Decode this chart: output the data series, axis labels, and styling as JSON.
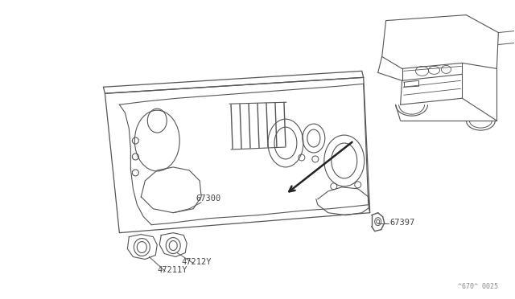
{
  "background_color": "#ffffff",
  "line_color": "#555555",
  "text_color": "#444444",
  "diagram_code": "^670^ 0025",
  "fig_width": 6.4,
  "fig_height": 3.72,
  "dpi": 100
}
